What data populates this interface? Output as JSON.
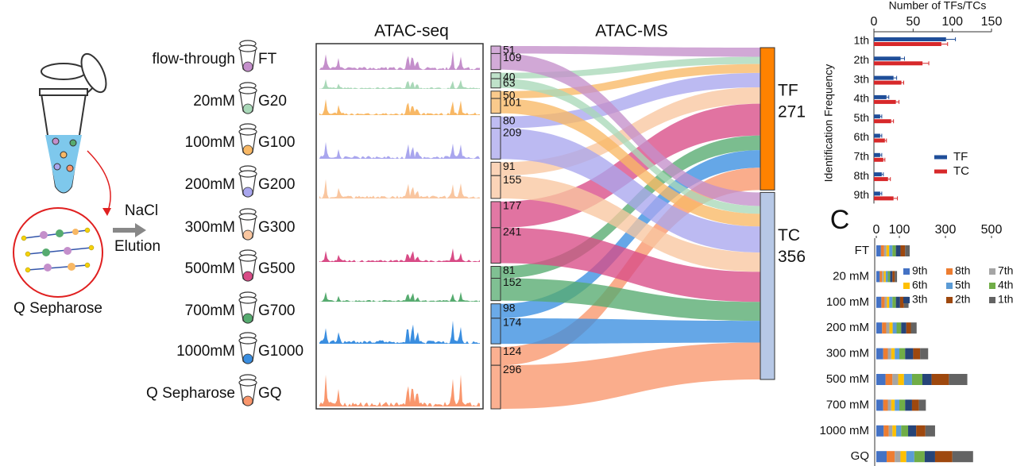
{
  "figure": {
    "resin_label": "Q Sepharose",
    "salt_label": "NaCl",
    "elution_label": "Elution",
    "track_title": "ATAC-seq",
    "panel_label": "C",
    "fractions": [
      {
        "buffer": "flow-through",
        "code": "FT"
      },
      {
        "buffer": "20mM",
        "code": "G20"
      },
      {
        "buffer": "100mM",
        "code": "G100"
      },
      {
        "buffer": "200mM",
        "code": "G200"
      },
      {
        "buffer": "300mM",
        "code": "G300"
      },
      {
        "buffer": "500mM",
        "code": "G500"
      },
      {
        "buffer": "700mM",
        "code": "G700"
      },
      {
        "buffer": "1000mM",
        "code": "G1000"
      },
      {
        "buffer": "Q Sepharose",
        "code": "GQ"
      }
    ]
  },
  "chart_data": [
    {
      "type": "sankey",
      "title": "ATAC-MS",
      "colors": [
        "#c48fcb",
        "#a9d8b8",
        "#f8b865",
        "#a9a6ee",
        "#f9c6a0",
        "#d84b86",
        "#56ab6f",
        "#3a8ee0",
        "#f9966c"
      ],
      "series": [
        {
          "name": "TF",
          "color": "#ff8200",
          "total": 271,
          "values": [
            51,
            40,
            50,
            80,
            91,
            177,
            81,
            98,
            124
          ]
        },
        {
          "name": "TC",
          "color": "#b7c8e6",
          "total": 356,
          "values": [
            109,
            63,
            101,
            209,
            155,
            241,
            152,
            174,
            296
          ]
        }
      ]
    },
    {
      "type": "hbar",
      "xlabel": "Number of TFs/TCs",
      "ylabel": "Identification Frequency",
      "categories": [
        "1th",
        "2th",
        "3th",
        "4th",
        "5th",
        "6th",
        "7th",
        "8th",
        "9th"
      ],
      "xlim": [
        0,
        150
      ],
      "xticks": [
        0,
        50,
        100,
        150
      ],
      "legend": "right",
      "series": [
        {
          "name": "TF",
          "color": "#1f4e99",
          "values": [
            92,
            34,
            25,
            16,
            8,
            8,
            8,
            10,
            8
          ],
          "errors": [
            12,
            5,
            4,
            3,
            2,
            2,
            2,
            2,
            2
          ]
        },
        {
          "name": "TC",
          "color": "#d7282a",
          "values": [
            86,
            62,
            35,
            28,
            22,
            14,
            12,
            18,
            25
          ],
          "errors": [
            8,
            8,
            3,
            4,
            3,
            2,
            2,
            3,
            5
          ]
        }
      ]
    },
    {
      "type": "stacked_hbar",
      "categories": [
        "FT",
        "20 mM",
        "100 mM",
        "200 mM",
        "300 mM",
        "500 mM",
        "700 mM",
        "1000 mM",
        "GQ"
      ],
      "xlim": [
        0,
        500
      ],
      "xticks": [
        0,
        100,
        300,
        500
      ],
      "legend": "top-right",
      "series": [
        {
          "name": "9th",
          "color": "#4472c4",
          "values": [
            20,
            15,
            22,
            25,
            30,
            40,
            30,
            32,
            45
          ]
        },
        {
          "name": "8th",
          "color": "#ed7d31",
          "values": [
            14,
            10,
            14,
            18,
            20,
            30,
            20,
            22,
            35
          ]
        },
        {
          "name": "7th",
          "color": "#a5a5a5",
          "values": [
            10,
            8,
            10,
            14,
            15,
            25,
            15,
            16,
            25
          ]
        },
        {
          "name": "6th",
          "color": "#ffc000",
          "values": [
            12,
            8,
            10,
            14,
            15,
            25,
            15,
            16,
            25
          ]
        },
        {
          "name": "5th",
          "color": "#5b9bd5",
          "values": [
            14,
            9,
            14,
            17,
            20,
            35,
            20,
            22,
            35
          ]
        },
        {
          "name": "4th",
          "color": "#70ad47",
          "values": [
            15,
            10,
            15,
            20,
            25,
            45,
            25,
            30,
            45
          ]
        },
        {
          "name": "3th",
          "color": "#264478",
          "values": [
            20,
            10,
            18,
            22,
            35,
            40,
            30,
            35,
            45
          ]
        },
        {
          "name": "2th",
          "color": "#9e480e",
          "values": [
            20,
            10,
            17,
            20,
            30,
            75,
            30,
            40,
            75
          ]
        },
        {
          "name": "1th",
          "color": "#636363",
          "values": [
            20,
            10,
            20,
            25,
            35,
            80,
            30,
            42,
            90
          ]
        }
      ]
    }
  ]
}
